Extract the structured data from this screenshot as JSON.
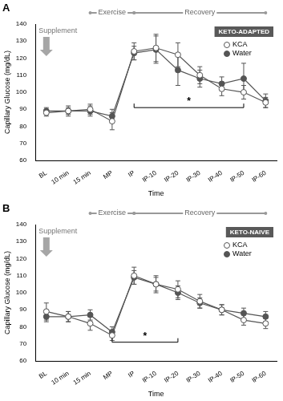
{
  "chart_data": [
    {
      "type": "line",
      "panel_label": "A",
      "group_label": "KETO-ADAPTED",
      "x_label": "Time",
      "y_label": "Capillary Glucose (mg/dL)",
      "categories": [
        "BL",
        "10 min",
        "15 min",
        "MP",
        "IP",
        "IP-10",
        "IP-20",
        "IP-30",
        "IP-40",
        "IP-50",
        "IP-60"
      ],
      "series": [
        {
          "name": "KCA",
          "color": "#555555",
          "marker": "open circle",
          "values": [
            88,
            89,
            90,
            83,
            124,
            126,
            122,
            110,
            102,
            100,
            94
          ],
          "errors": [
            2,
            3,
            3,
            5,
            5,
            8,
            7,
            5,
            4,
            4,
            3
          ]
        },
        {
          "name": "Water",
          "color": "#555555",
          "marker": "circle",
          "values": [
            89,
            89,
            89,
            86,
            123,
            125,
            113,
            108,
            105,
            108,
            95
          ],
          "errors": [
            2,
            2,
            3,
            4,
            4,
            8,
            9,
            5,
            4,
            9,
            4
          ]
        }
      ],
      "ylim": [
        60,
        140
      ],
      "yticks": [
        60,
        70,
        80,
        90,
        100,
        110,
        120,
        130,
        140
      ],
      "grid": false,
      "legend": "upper right",
      "phases": [
        {
          "label": "Exercise",
          "from": "15 min",
          "to": "IP"
        },
        {
          "label": "Recovery",
          "from": "IP",
          "to": "IP-60"
        }
      ],
      "supplement": {
        "label": "Supplement",
        "at": "BL"
      },
      "significance": {
        "label": "*",
        "from": "IP",
        "to": "IP-50",
        "y": 91
      }
    },
    {
      "type": "line",
      "panel_label": "B",
      "group_label": "KETO-NAIVE",
      "x_label": "Time",
      "y_label": "Capillary Glucose (mg/dL)",
      "categories": [
        "BL",
        "10 min",
        "15 min",
        "MP",
        "IP",
        "IP-10",
        "IP-20",
        "IP-30",
        "IP-40",
        "IP-50",
        "IP-60"
      ],
      "series": [
        {
          "name": "KCA",
          "color": "#555555",
          "marker": "open circle",
          "values": [
            89,
            86,
            82,
            75,
            110,
            105,
            102,
            95,
            90,
            84,
            82
          ],
          "errors": [
            5,
            3,
            4,
            3,
            5,
            5,
            5,
            4,
            3,
            3,
            3
          ]
        },
        {
          "name": "Water",
          "color": "#555555",
          "marker": "circle",
          "values": [
            86,
            86,
            87,
            77,
            109,
            105,
            100,
            94,
            90,
            88,
            86
          ],
          "errors": [
            3,
            3,
            3,
            3,
            4,
            4,
            4,
            3,
            3,
            3,
            3
          ]
        }
      ],
      "ylim": [
        60,
        140
      ],
      "yticks": [
        60,
        70,
        80,
        90,
        100,
        110,
        120,
        130,
        140
      ],
      "grid": false,
      "legend": "upper right",
      "phases": [
        {
          "label": "Exercise",
          "from": "15 min",
          "to": "IP"
        },
        {
          "label": "Recovery",
          "from": "IP",
          "to": "IP-60"
        }
      ],
      "supplement": {
        "label": "Supplement",
        "at": "BL"
      },
      "significance": {
        "label": "*",
        "from": "MP",
        "to": "IP-20",
        "y": 71
      }
    }
  ]
}
